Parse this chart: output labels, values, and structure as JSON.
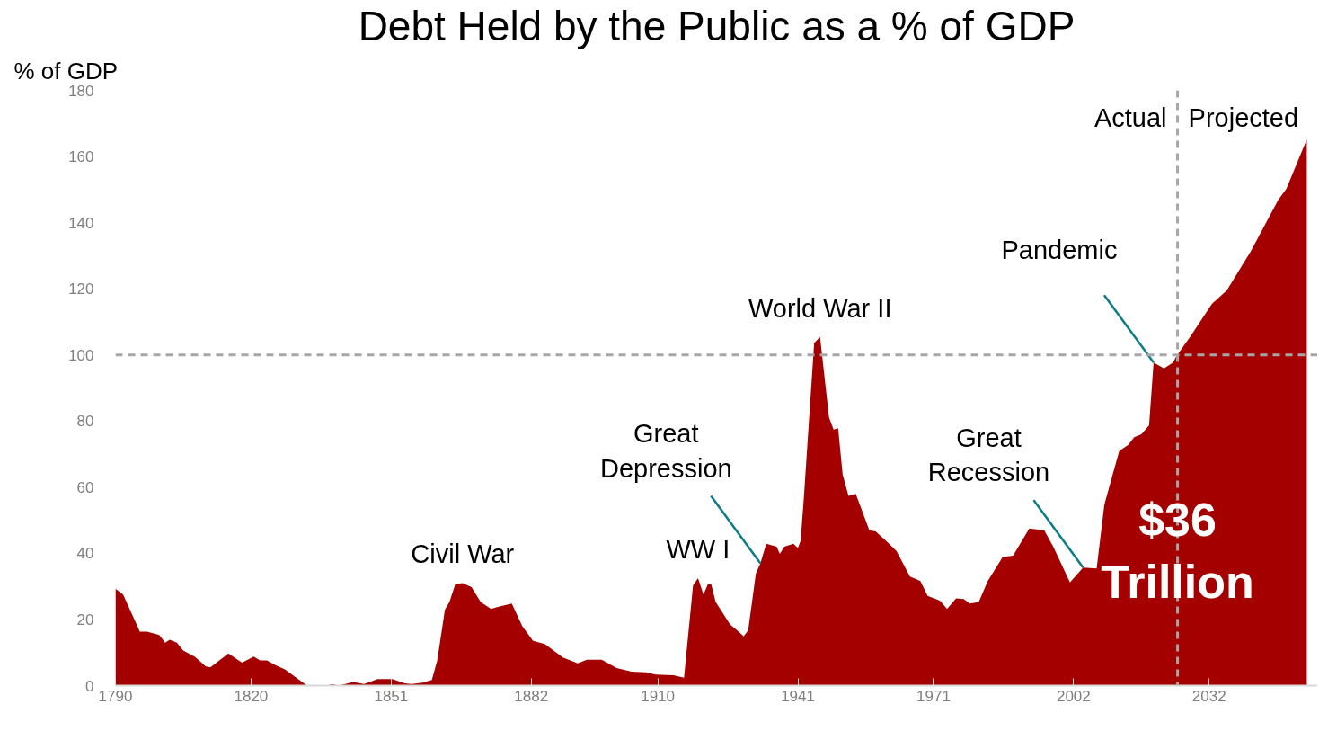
{
  "chart_data": {
    "type": "area",
    "title": "Debt Held by the Public as a % of GDP",
    "ylabel": "% of GDP",
    "x": [
      1790,
      1791.7,
      1795.4,
      1797,
      1799.7,
      1801,
      1802,
      1803.6,
      1805,
      1807.6,
      1810,
      1811,
      1813,
      1815,
      1818,
      1820.6,
      1822,
      1823.5,
      1825.5,
      1827.5,
      1830,
      1832.4,
      1836.7,
      1838,
      1839.4,
      1842.6,
      1845,
      1848,
      1851.3,
      1854,
      1855.5,
      1858,
      1860,
      1861.2,
      1862.9,
      1863.9,
      1865.2,
      1866.8,
      1868.8,
      1870.8,
      1873.1,
      1874.4,
      1877.7,
      1880,
      1882.4,
      1885,
      1889,
      1892.3,
      1894.3,
      1897.6,
      1900.9,
      1904.2,
      1907.5,
      1909.5,
      1913.5,
      1915.8,
      1917.8,
      1918.9,
      1920.1,
      1921.1,
      1921.8,
      1922.8,
      1926,
      1928,
      1929,
      1930,
      1931.7,
      1932.7,
      1934,
      1936.3,
      1937,
      1938,
      1940,
      1941,
      1941.6,
      1942.3,
      1944.6,
      1945.9,
      1947.9,
      1948.9,
      1949.9,
      1950.9,
      1952.2,
      1953.8,
      1955.2,
      1956.8,
      1958.2,
      1960.5,
      1962.8,
      1965.8,
      1968.1,
      1969.7,
      1972.4,
      1974,
      1976,
      1977.7,
      1979,
      1981,
      1983,
      1986.3,
      1988.6,
      1992.2,
      1995.5,
      1997.5,
      2001.2,
      2004.1,
      2007.1,
      2008.8,
      2012.1,
      2014.1,
      2015.4,
      2017,
      2018.7,
      2019.7,
      2022,
      2024,
      2024.7,
      2028,
      2032.6,
      2035.9,
      2041.2,
      2047.2,
      2049.1,
      2053.6
    ],
    "series": [
      {
        "color": "#a50000",
        "values": [
          29.3,
          27.5,
          16.3,
          16.3,
          15.3,
          13,
          13.9,
          13,
          10.6,
          8.7,
          5.8,
          5.5,
          7.6,
          9.7,
          6.9,
          8.8,
          7.6,
          7.6,
          6.1,
          4.9,
          2.4,
          0,
          0,
          0.4,
          0,
          1.1,
          0.5,
          2,
          2,
          0.7,
          0.5,
          0.9,
          1.7,
          7.6,
          23,
          25.3,
          30.7,
          31,
          29.8,
          25.3,
          23.2,
          23.7,
          24.8,
          18,
          13.5,
          12.6,
          8.5,
          6.7,
          7.8,
          7.8,
          5.3,
          4.2,
          4,
          3.3,
          3.1,
          2.4,
          30.3,
          32.5,
          27.5,
          30.7,
          30.7,
          25.3,
          18.5,
          16.2,
          14.9,
          16.7,
          33.9,
          37,
          42.9,
          42,
          39.8,
          42,
          42.9,
          41.6,
          43.8,
          56.5,
          103.6,
          105.4,
          81,
          77.4,
          77.8,
          63.8,
          57.4,
          58,
          52.9,
          47,
          46.6,
          43.8,
          40.7,
          33,
          31.6,
          27.1,
          25.7,
          23.2,
          26.4,
          26.2,
          24.8,
          25.2,
          31.6,
          38.9,
          39.3,
          47.5,
          47,
          42,
          31.2,
          35.7,
          35.4,
          54.7,
          71,
          72.8,
          75.1,
          76,
          78.7,
          97.7,
          95.9,
          97.7,
          99.5,
          105.9,
          115.4,
          119.5,
          131.3,
          146.7,
          150.3,
          165.2
        ]
      }
    ],
    "xlim": [
      1790,
      2056
    ],
    "ylim": [
      0,
      180
    ],
    "xticks": [
      1790,
      1820,
      1851,
      1882,
      1910,
      1941,
      1971,
      2002,
      2032
    ],
    "yticks": [
      0,
      20,
      40,
      60,
      80,
      100,
      120,
      140,
      160,
      180
    ],
    "ref_lines": [
      {
        "axis": "y",
        "value": 100,
        "color": "#a6a6a6",
        "line_style": "dashed"
      },
      {
        "axis": "x",
        "value": 2025,
        "color": "#a6a6a6",
        "line_style": "dashed"
      }
    ],
    "annotations": [
      {
        "text": "Civil War",
        "x": 1866.8,
        "y": 31
      },
      {
        "text": "Great\nDepression",
        "x": 1932.7,
        "y": 37
      },
      {
        "text": "WW I",
        "x": 1918.9,
        "y": 32.5
      },
      {
        "text": "World War II",
        "x": 1945.9,
        "y": 105.4
      },
      {
        "text": "Great\nRecession",
        "x": 2004.1,
        "y": 35.7
      },
      {
        "text": "Pandemic",
        "x": 2019.7,
        "y": 97.7
      },
      "Actual",
      "Projected",
      "$36\nTrillion"
    ],
    "grid": false
  }
}
